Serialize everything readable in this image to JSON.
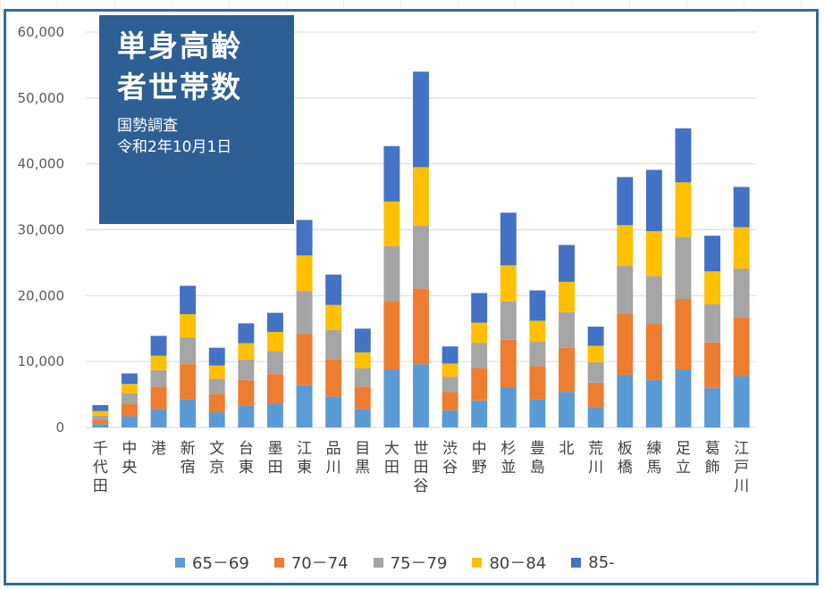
{
  "title": {
    "line1": "単身高齢",
    "line2": "者世帯数",
    "subtitle1": "国勢調査",
    "subtitle2": "令和2年10月1日"
  },
  "colors": {
    "65-69": "#5b9bd5",
    "70-74": "#ed7d31",
    "75-79": "#a5a5a5",
    "80-84": "#ffc000",
    "85-": "#4472c4"
  },
  "chart_data": {
    "type": "bar",
    "stacked": true,
    "ylim": [
      0,
      60000
    ],
    "yticks": [
      "0",
      "10,000",
      "20,000",
      "30,000",
      "40,000",
      "50,000",
      "60,000"
    ],
    "ytick_values": [
      0,
      10000,
      20000,
      30000,
      40000,
      50000,
      60000
    ],
    "grid": true,
    "legend_position": "bottom",
    "categories": [
      "千代田",
      "中央",
      "港",
      "新宿",
      "文京",
      "台東",
      "墨田",
      "江東",
      "品川",
      "目黒",
      "大田",
      "世田谷",
      "渋谷",
      "中野",
      "杉並",
      "豊島",
      "北",
      "荒川",
      "板橋",
      "練馬",
      "足立",
      "葛飾",
      "江戸川"
    ],
    "series": [
      {
        "name": "65－69",
        "key": "65-69",
        "values": [
          500,
          1700,
          2800,
          4300,
          2300,
          3300,
          3600,
          6400,
          4700,
          2800,
          8800,
          9600,
          2600,
          4100,
          6100,
          4300,
          5400,
          3100,
          8000,
          7200,
          8800,
          6000,
          7800
        ]
      },
      {
        "name": "70－74",
        "key": "70-74",
        "values": [
          700,
          1900,
          3400,
          5300,
          2800,
          3900,
          4500,
          7800,
          5700,
          3400,
          10400,
          11500,
          2800,
          4900,
          7200,
          5000,
          6700,
          3700,
          9200,
          8500,
          10700,
          6900,
          8900
        ]
      },
      {
        "name": "75－79",
        "key": "75-79",
        "values": [
          600,
          1600,
          2500,
          4100,
          2300,
          3100,
          3500,
          6500,
          4400,
          2800,
          8300,
          9500,
          2300,
          3800,
          5800,
          3800,
          5400,
          3100,
          7300,
          7300,
          9400,
          5800,
          7400
        ]
      },
      {
        "name": "80－84",
        "key": "80-84",
        "values": [
          700,
          1400,
          2200,
          3500,
          2000,
          2500,
          2900,
          5400,
          3800,
          2400,
          6800,
          8900,
          2000,
          3100,
          5500,
          3100,
          4600,
          2500,
          6200,
          6800,
          8300,
          5000,
          6300
        ]
      },
      {
        "name": "85-",
        "key": "85-",
        "values": [
          900,
          1600,
          3000,
          4300,
          2700,
          3000,
          2900,
          5400,
          4600,
          3600,
          8400,
          14500,
          2600,
          4500,
          8000,
          4600,
          5600,
          2900,
          7300,
          9300,
          8200,
          5400,
          6100
        ]
      }
    ]
  }
}
